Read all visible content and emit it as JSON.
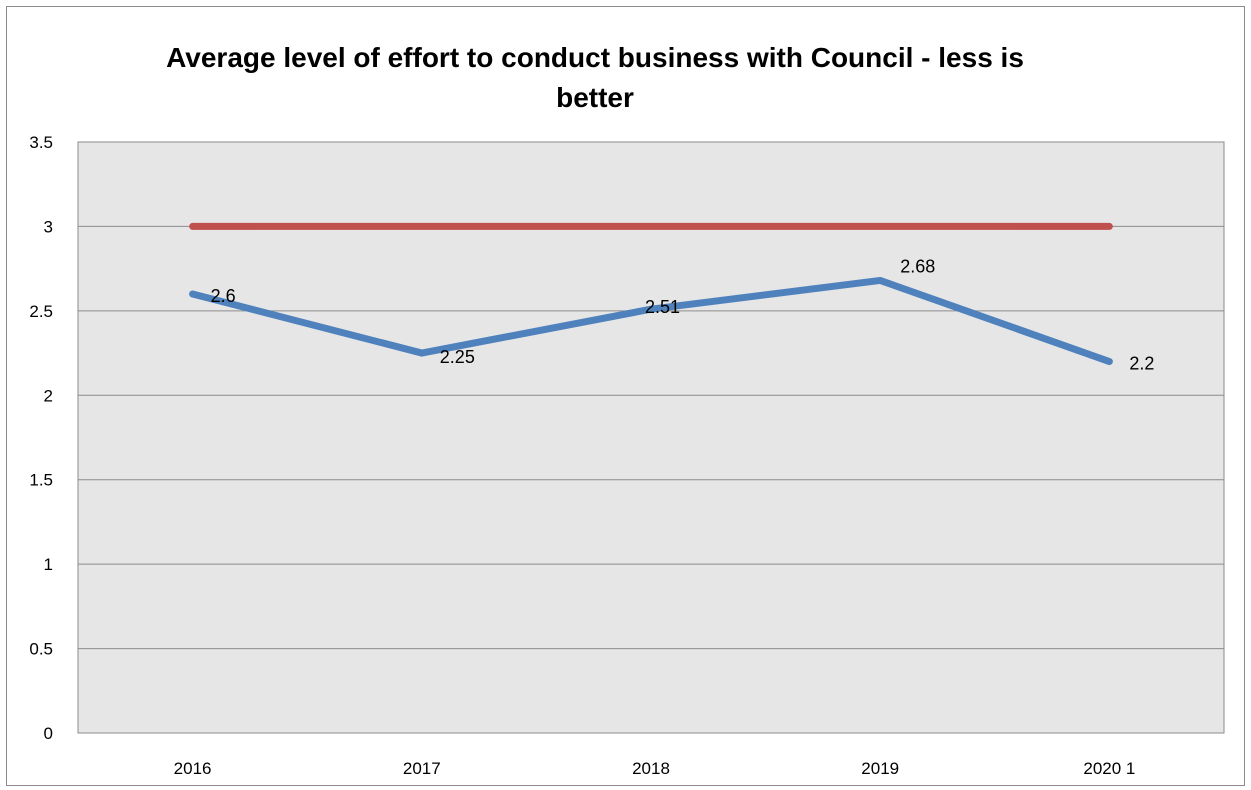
{
  "chart_data": {
    "type": "line",
    "title": "Average level of effort to conduct business with Council - less is better",
    "xlabel": "",
    "ylabel": "",
    "categories": [
      "2016",
      "2017",
      "2018",
      "2019",
      "2020 1"
    ],
    "ylim": [
      0,
      3.5
    ],
    "yticks": [
      "0",
      "0.5",
      "1",
      "1.5",
      "2",
      "2.5",
      "3",
      "3.5"
    ],
    "grid": true,
    "legend": "none",
    "series": [
      {
        "values": [
          2.6,
          2.25,
          2.51,
          2.68,
          2.2
        ],
        "data_labels": [
          "2.6",
          "2.25",
          "2.51",
          "2.68",
          "2.2"
        ],
        "color": "#4f81bd"
      },
      {
        "values": [
          3,
          3,
          3,
          3,
          3
        ],
        "color": "#c0504d"
      }
    ],
    "plot_background": "#e6e6e6",
    "gridline_color": "#8c8c8c"
  }
}
